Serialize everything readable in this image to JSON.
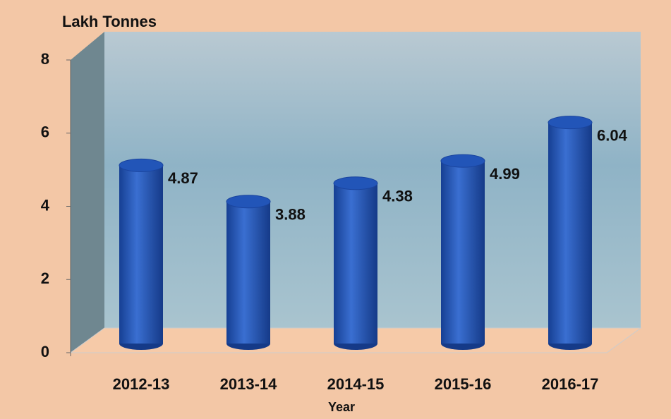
{
  "chart_data": {
    "type": "bar",
    "title": "Lakh Tonnes",
    "x_label": "Year",
    "categories": [
      "2012-13",
      "2013-14",
      "2014-15",
      "2015-16",
      "2016-17"
    ],
    "values": [
      4.87,
      3.88,
      4.38,
      4.99,
      6.04
    ],
    "color": "#2255b8",
    "ylim": [
      0,
      8
    ],
    "yticks": [
      0,
      2,
      4,
      6,
      8
    ]
  }
}
